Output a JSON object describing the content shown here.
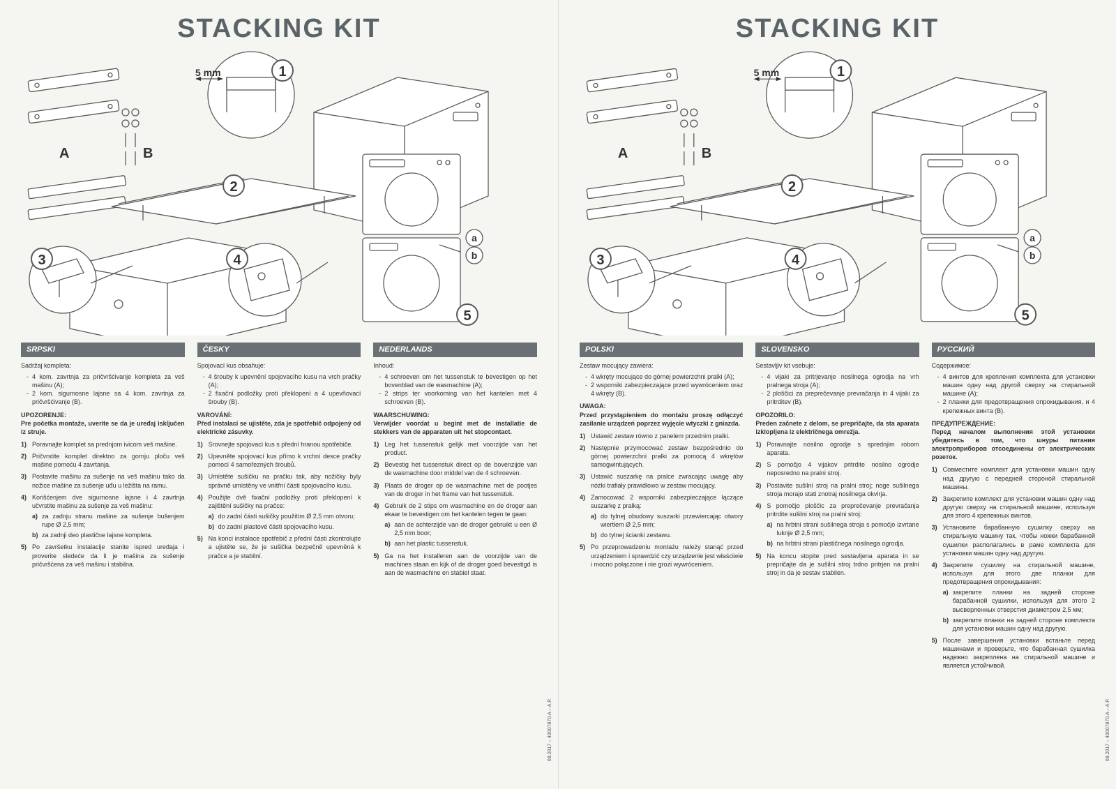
{
  "title": "STACKING KIT",
  "diagram": {
    "mm_label": "5 mm",
    "labels": {
      "A": "A",
      "B": "B",
      "a": "a",
      "b": "b"
    },
    "callouts": [
      "1",
      "2",
      "3",
      "4",
      "5"
    ],
    "colors": {
      "line": "#5a5a5a",
      "fill": "#ffffff",
      "accent": "#6b7074"
    }
  },
  "footer": "08.2017 – 40007870.A – A.P.",
  "pages": [
    {
      "languages": [
        {
          "header": "SRPSKI",
          "intro": "Sadržaj kompleta:",
          "contents": [
            "4 kom. zavrtnja za pričvršćivanje kompleta za veš mašinu (A);",
            "2 kom. sigurnosne lajsne sa 4 kom. zavrtnja za pričvršćivanje (B)."
          ],
          "warning_label": "UPOZORENJE:",
          "warning": "Pre početka montaže, uverite se da je uređaj isključen iz struje.",
          "steps": [
            {
              "text": "Poravnajte komplet sa prednjom ivicom veš mašine."
            },
            {
              "text": "Pričvrstite komplet direktno za gornju ploču veš mašine pomoću 4 zavrtanja."
            },
            {
              "text": "Postavite mašinu za sušenje na veš mašinu tako da nožice mašine za sušenje uđu u ležišta na ramu."
            },
            {
              "text": "Korišćenjem dve sigurnosne lajsne i 4 zavrtnja učvrstite mašinu za sušenje za veš mašinu:",
              "subs": [
                "za zadnju stranu mašine za sušenje bušenjem rupe Ø 2,5 mm;",
                "za zadnji deo plastične lajsne kompleta."
              ]
            },
            {
              "text": "Po završetku instalacije stanite ispred uređaja i proverite sledeće da li je mašina za sušenje pričvršćena za veš mašinu i stabilna."
            }
          ]
        },
        {
          "header": "ČESKY",
          "intro": "Spojovací kus obsahuje:",
          "contents": [
            "4 šrouby k upevnění spojovacího kusu na vrch pračky (A);",
            "2 fixační podložky proti překlopení a 4 upevňovací šrouby (B)."
          ],
          "warning_label": "VAROVÁNÍ:",
          "warning": "Před instalací se ujistěte, zda je spotřebič odpojený od elektrické zásuvky.",
          "steps": [
            {
              "text": "Srovnejte spojovací kus s přední hranou spotřebiče."
            },
            {
              "text": "Upevněte spojovací kus přímo k vrchní desce pračky pomocí 4 samořezných šroubů."
            },
            {
              "text": "Umístěte sušičku na pračku tak, aby nožičky byly správně umístěny ve vnitřní části spojovacího kusu."
            },
            {
              "text": "Použijte dvě fixační podložky proti překlopení k zajištění sušičky na pračce:",
              "subs": [
                "do zadní části sušičky použitím Ø 2,5 mm otvoru;",
                "do zadní plastové části spojovacího kusu."
              ]
            },
            {
              "text": "Na konci instalace spotřebič z přední části zkontrolujte a ujistěte se, že je sušička bezpečně upevněná k pračce a je stabilní."
            }
          ]
        },
        {
          "header": "NEDERLANDS",
          "intro": "Inhoud:",
          "contents": [
            "4 schroeven om het tussenstuk te bevestigen op het bovenblad van de wasmachine (A);",
            "2 strips ter voorkoming van het kantelen met 4 schroeven (B)."
          ],
          "warning_label": "WAARSCHUWING:",
          "warning": "Verwijder voordat u begint met de installatie de stekkers van de apparaten uit het stopcontact.",
          "steps": [
            {
              "text": "Leg het tussenstuk gelijk met voorzijde van het product."
            },
            {
              "text": "Bevestig het tussenstuk direct op de bovenzijde van de wasmachine door middel van de 4 schroeven."
            },
            {
              "text": "Plaats de droger op de wasmachine met de pootjes van de droger in het frame van het tussenstuk."
            },
            {
              "text": "Gebruik de 2 stips om wasmachine en de droger aan ekaar te bevestigen om het kantelen tegen te gaan:",
              "subs": [
                "aan de achterzijde van de droger gebruikt u een Ø 2,5 mm boor;",
                "aan het plastic tussenstuk."
              ]
            },
            {
              "text": "Ga na het installeren aan de voorzijde van de machines staan en kijk of de droger goed bevestigd is aan de wasmachine en stabiel staat."
            }
          ]
        }
      ]
    },
    {
      "languages": [
        {
          "header": "POLSKI",
          "intro": "Zestaw mocujący zawiera:",
          "contents": [
            "4 wkręty mocujące do górnej powierzchni pralki (A);",
            "2 wsporniki zabezpieczające przed wywróceniem oraz 4 wkręty (B)."
          ],
          "warning_label": "UWAGA:",
          "warning": "Przed przystąpieniem do montażu proszę odłączyć zasilanie urządzeń poprzez wyjęcie wtyczki z gniazda.",
          "steps": [
            {
              "text": "Ustawić zestaw równo z panelem przednim pralki."
            },
            {
              "text": "Następnie przymocować zestaw bezpośrednio do górnej powierzchni pralki za pomocą 4 wkrętów samogwintujących."
            },
            {
              "text": "Ustawić suszarkę na pralce zwracając uwagę aby nóżki trafiały prawidłowo w zestaw mocujący."
            },
            {
              "text": "Zamocować 2 wsporniki zabezpieczające łączące suszarkę z pralką:",
              "subs": [
                "do tylnej obudowy suszarki przewiercając otwory wiertłem Ø 2,5 mm;",
                "do tylnej ścianki zestawu."
              ]
            },
            {
              "text": "Po przeprowadzeniu montażu należy stanąć przed urządzeniem i sprawdzić czy urządzenie jest właściwie i mocno połączone i nie grozi wywróceniem."
            }
          ]
        },
        {
          "header": "SLOVENSKO",
          "intro": "Sestavljiv kit vsebuje:",
          "contents": [
            "4 vijaki za pritrjevanje nosilnega ogrodja na vrh pralnega stroja (A);",
            "2 ploščici za preprečevanje prevračanja in 4 vijaki za pritrditev (B)."
          ],
          "warning_label": "OPOZORILO:",
          "warning": "Preden začnete z delom, se prepričajte, da sta aparata izklopljena iz električnega omrežja.",
          "steps": [
            {
              "text": "Poravnajte nosilno ogrodje s sprednjim robom aparata."
            },
            {
              "text": "S pomočjo 4 vijakov pritrdite nosilno ogrodje neposredno na pralni stroj."
            },
            {
              "text": "Postavite sušilni stroj na pralni stroj; noge sušilnega stroja morajo stati znotraj nosilnega okvirja."
            },
            {
              "text": "S pomočjo ploščic za preprečevanje prevračanja pritrdite sušilni stroj na pralni stroj:",
              "subs": [
                "na hrbtni strani sušilnega stroja s pomočjo izvrtane luknje Ø 2,5 mm;",
                "na hrbtni strani plastičnega nosilnega ogrodja."
              ]
            },
            {
              "text": "Na koncu stopite pred sestavljena aparata in se prepričajte da je sušilni stroj trdno pritrjen na pralni stroj in da je sestav stabilen."
            }
          ]
        },
        {
          "header": "РУССКИЙ",
          "intro": "Содержимое:",
          "contents": [
            "4 винтов для крепления комплекта для установки машин одну над другой сверху на стиральной машине (A);",
            "2 планки для предотвращения опрокидывания, и 4 крепежных винта (B)."
          ],
          "warning_label": "ПРЕДУПРЕЖДЕНИЕ:",
          "warning": "Перед началом выполнения этой установки убедитесь в том, что шнуры питания электроприборов отсоединены от электрических розеток.",
          "steps": [
            {
              "text": "Совместите комплект для установки машин одну над другую с передней стороной стиральной машины."
            },
            {
              "text": "Закрепите комплект для установки машин одну над другую сверху на стиральной машине, используя для этого 4 крепежных винтов."
            },
            {
              "text": "Установите барабанную сушилку сверху на стиральную машину так, чтобы ножки барабанной сушилки располагались в раме комплекта для установки машин одну над другую."
            },
            {
              "text": "Закрепите сушилку на стиральной машине, используя для этого две планки для предотвращения опрокидывания:",
              "subs": [
                "закрепите планки на задней стороне барабанной сушилки, используя для этого 2 высверленных отверстия диаметром 2,5 мм;",
                "закрепите планки на задней стороне комплекта для установки машин одну над другую."
              ]
            },
            {
              "text": "После завершения установки встаньте перед машинами и проверьте, что барабанная сушилка надежно закреплена на стиральной машине и является устойчивой."
            }
          ]
        }
      ]
    }
  ]
}
